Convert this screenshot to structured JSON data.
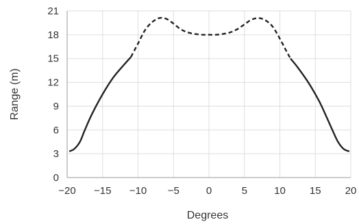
{
  "chart_data": {
    "type": "line",
    "xlabel": "Degrees",
    "ylabel": "Range (m)",
    "xlim": [
      -20,
      20
    ],
    "ylim": [
      0,
      21
    ],
    "x_ticks": [
      -20,
      -15,
      -10,
      -5,
      0,
      5,
      10,
      15,
      20
    ],
    "y_ticks": [
      0,
      3,
      6,
      9,
      12,
      15,
      18,
      21
    ],
    "x_tick_labels": [
      "−20",
      "−15",
      "−10",
      "−5",
      "0",
      "5",
      "10",
      "15",
      "20"
    ],
    "y_tick_labels": [
      "0",
      "3",
      "6",
      "9",
      "12",
      "15",
      "18",
      "21"
    ],
    "grid": true,
    "line_color": "#222222",
    "series": [
      {
        "style": "solid",
        "points": [
          [
            -19.7,
            3.3
          ],
          [
            -19,
            3.6
          ],
          [
            -18.2,
            4.5
          ],
          [
            -17.5,
            6.0
          ],
          [
            -16.5,
            8.0
          ],
          [
            -15,
            10.5
          ],
          [
            -13.5,
            12.6
          ],
          [
            -12,
            14.2
          ],
          [
            -11,
            15.2
          ]
        ]
      },
      {
        "style": "dashed",
        "points": [
          [
            -11,
            15.2
          ],
          [
            -10,
            16.9
          ],
          [
            -9,
            18.6
          ],
          [
            -8,
            19.6
          ],
          [
            -7,
            20.1
          ],
          [
            -6,
            20.0
          ],
          [
            -5,
            19.4
          ],
          [
            -4,
            18.7
          ],
          [
            -3,
            18.3
          ],
          [
            -2,
            18.1
          ],
          [
            -1,
            18.0
          ],
          [
            0,
            18.0
          ],
          [
            1,
            18.0
          ],
          [
            2,
            18.1
          ],
          [
            3,
            18.3
          ],
          [
            4,
            18.7
          ],
          [
            5,
            19.3
          ],
          [
            6,
            19.9
          ],
          [
            7,
            20.1
          ],
          [
            8,
            19.8
          ],
          [
            9,
            19.0
          ],
          [
            10,
            17.5
          ],
          [
            11,
            15.8
          ],
          [
            11.5,
            15.0
          ]
        ]
      },
      {
        "style": "solid",
        "points": [
          [
            11.5,
            15.0
          ],
          [
            12.5,
            13.9
          ],
          [
            14,
            12.0
          ],
          [
            15.5,
            9.7
          ],
          [
            16.5,
            7.8
          ],
          [
            17.5,
            5.8
          ],
          [
            18.2,
            4.5
          ],
          [
            19,
            3.6
          ],
          [
            19.8,
            3.3
          ]
        ]
      }
    ]
  }
}
